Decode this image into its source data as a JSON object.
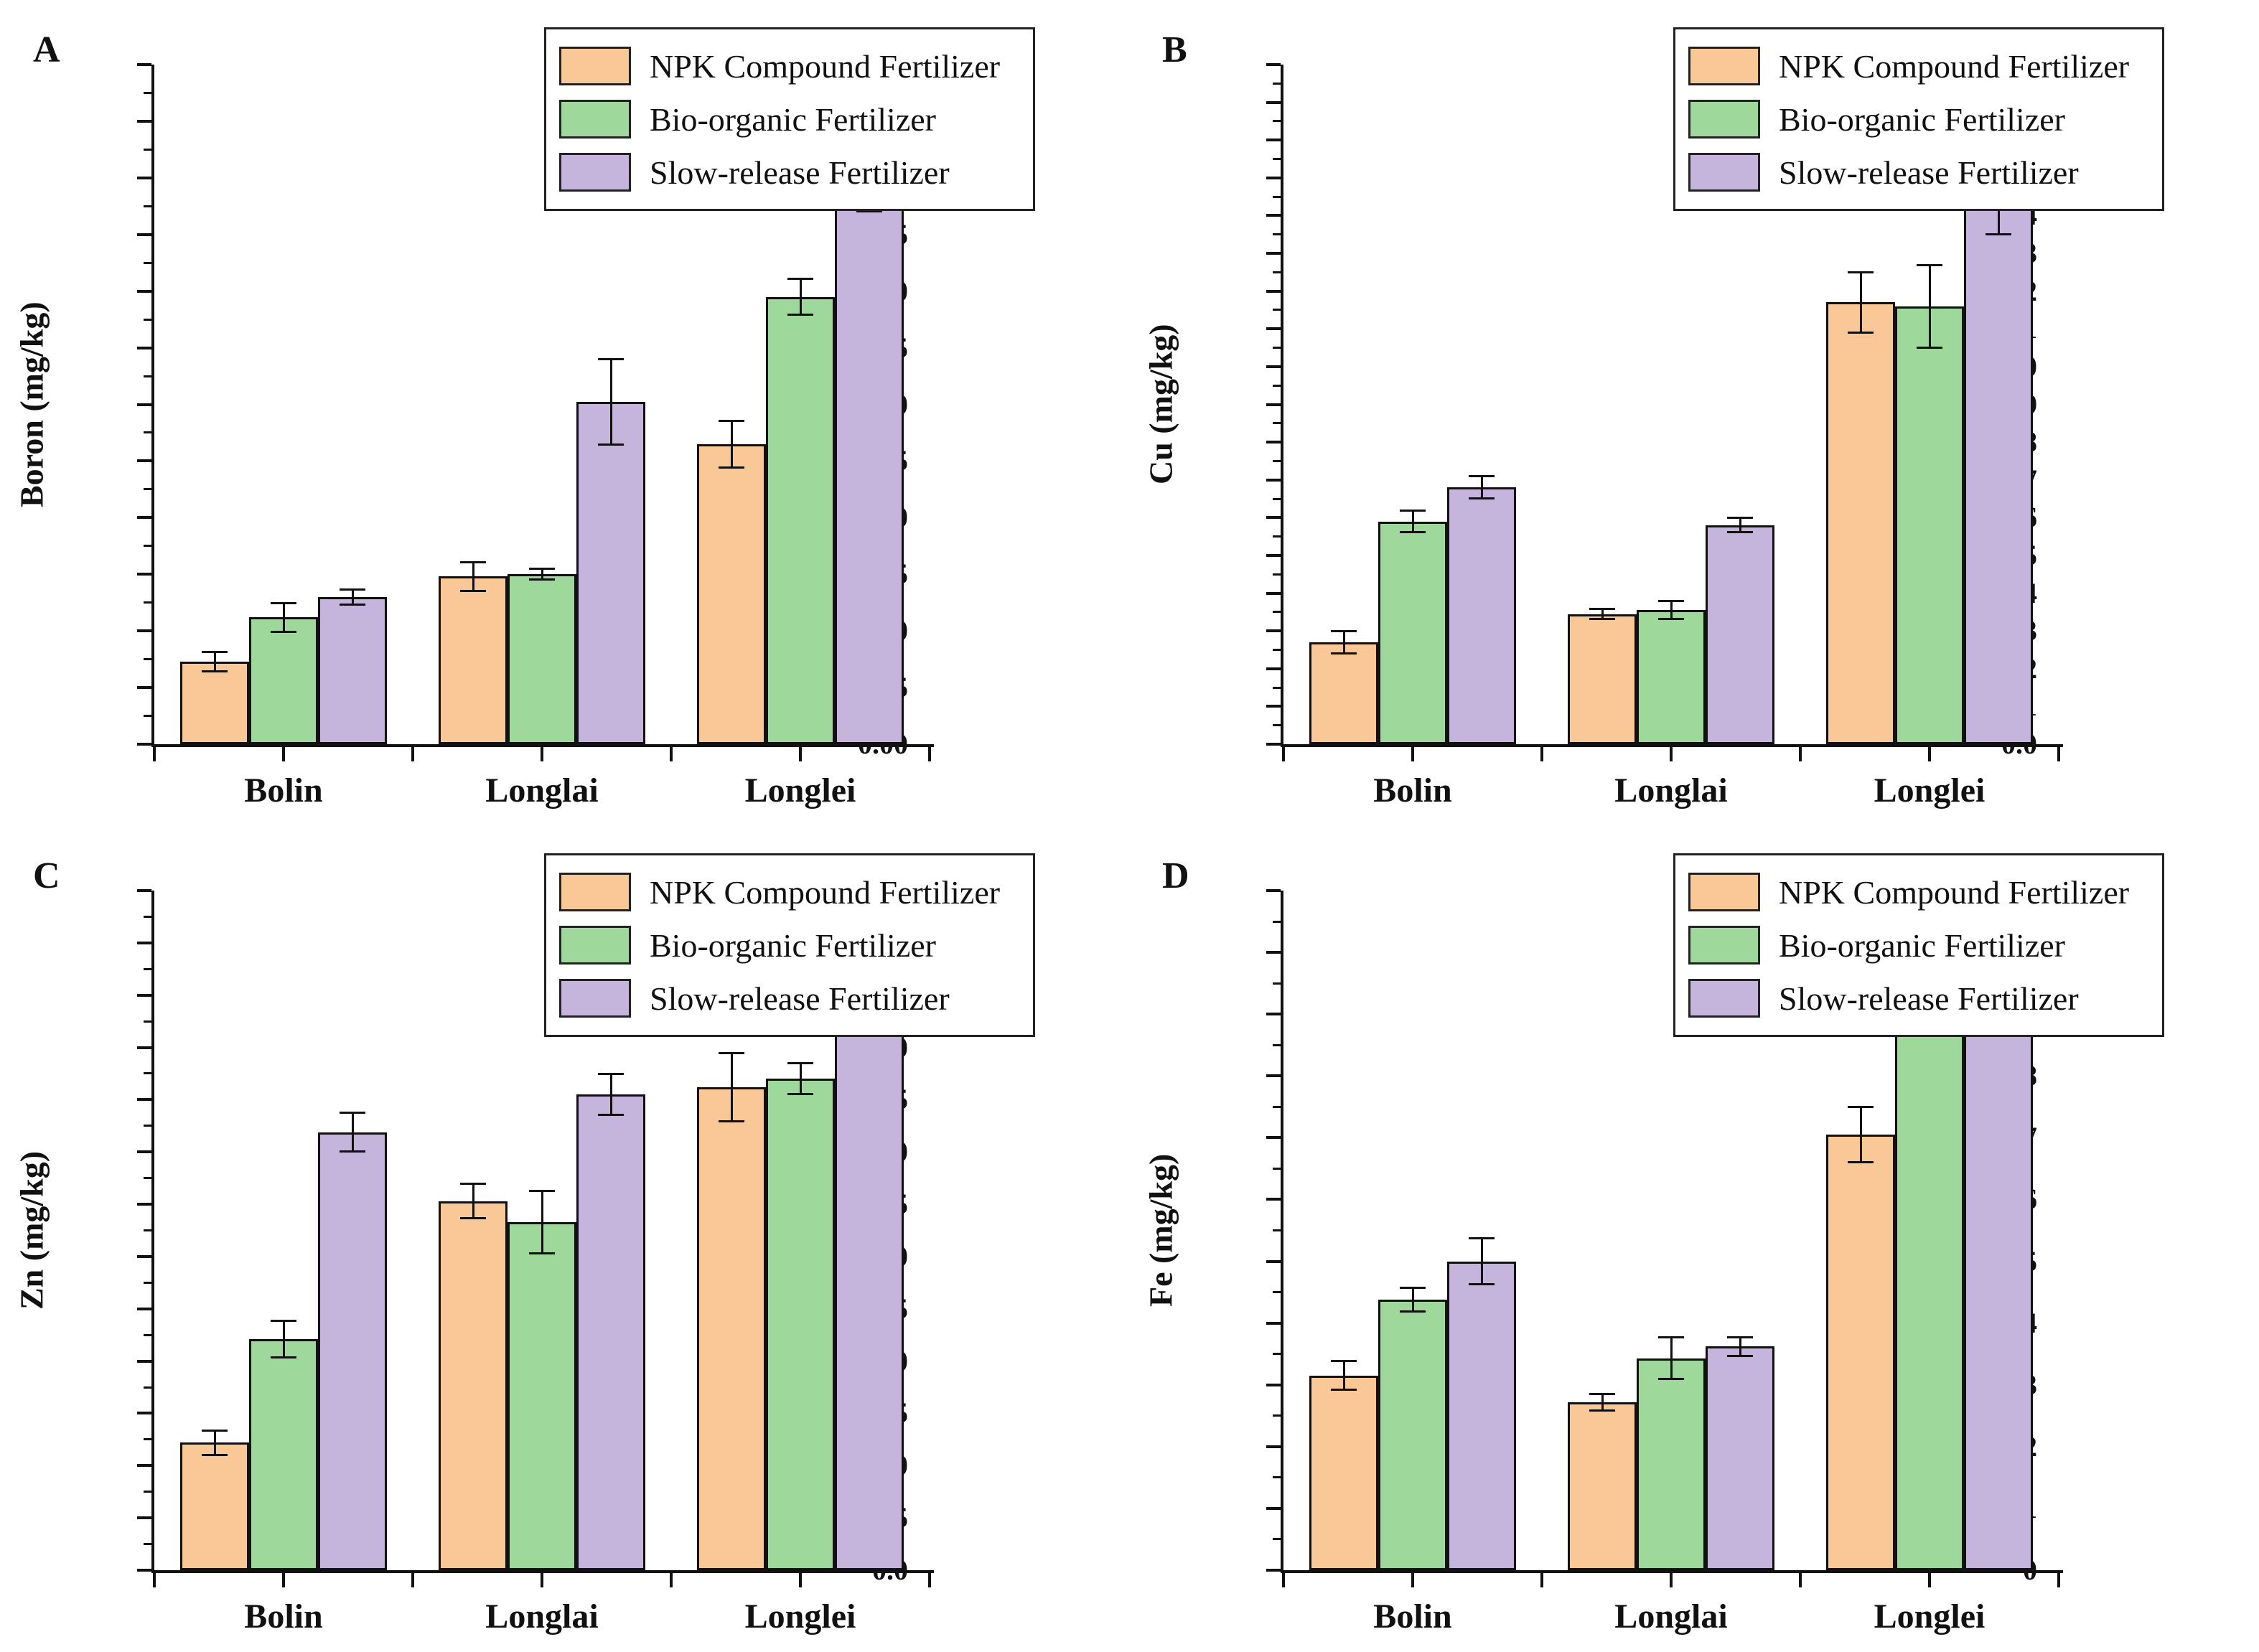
{
  "figure": {
    "background": "#ffffff",
    "text_color": "#111111",
    "legend": {
      "items": [
        {
          "label": "NPK Compound Fertilizer",
          "color": "#FAC896"
        },
        {
          "label": "Bio-organic Fertilizer",
          "color": "#9ED99B"
        },
        {
          "label": "Slow-release Fertilizer",
          "color": "#C5B4DB"
        }
      ],
      "position": "top-right"
    }
  },
  "chart_data": [
    {
      "type": "bar",
      "panel_label": "A",
      "ylabel": "Boron (mg/kg)",
      "xlabel": "",
      "ymin": 0,
      "ymax": 0.6,
      "major_step": 0.05,
      "minor_per_major": 2,
      "decimals": 2,
      "grid": false,
      "legend_position": "top-right",
      "categories": [
        "Bolin",
        "Longlai",
        "Longlei"
      ],
      "series": [
        {
          "name": "NPK Compound Fertilizer",
          "color": "#FAC896",
          "values": [
            0.073,
            0.148,
            0.265
          ],
          "errors": [
            0.009,
            0.013,
            0.021
          ]
        },
        {
          "name": "Bio-organic Fertilizer",
          "color": "#9ED99B",
          "values": [
            0.112,
            0.15,
            0.395
          ],
          "errors": [
            0.013,
            0.005,
            0.016
          ]
        },
        {
          "name": "Slow-release Fertilizer",
          "color": "#C5B4DB",
          "values": [
            0.13,
            0.302,
            0.495
          ],
          "errors": [
            0.007,
            0.038,
            0.025
          ]
        }
      ]
    },
    {
      "type": "bar",
      "panel_label": "B",
      "ylabel": "Cu (mg/kg)",
      "xlabel": "",
      "ymin": 0,
      "ymax": 1.8,
      "major_step": 0.1,
      "minor_per_major": 2,
      "decimals": 1,
      "grid": false,
      "legend_position": "top-right",
      "categories": [
        "Bolin",
        "Longlai",
        "Longlei"
      ],
      "series": [
        {
          "name": "NPK Compound Fertilizer",
          "color": "#FAC896",
          "values": [
            0.27,
            0.345,
            1.17
          ],
          "errors": [
            0.03,
            0.015,
            0.08
          ]
        },
        {
          "name": "Bio-organic Fertilizer",
          "color": "#9ED99B",
          "values": [
            0.59,
            0.355,
            1.16
          ],
          "errors": [
            0.03,
            0.025,
            0.11
          ]
        },
        {
          "name": "Slow-release Fertilizer",
          "color": "#C5B4DB",
          "values": [
            0.68,
            0.58,
            1.45
          ],
          "errors": [
            0.03,
            0.02,
            0.1
          ]
        }
      ]
    },
    {
      "type": "bar",
      "panel_label": "C",
      "ylabel": "Zn (mg/kg)",
      "xlabel": "",
      "ymin": 0,
      "ymax": 6.5,
      "major_step": 0.5,
      "minor_per_major": 2,
      "decimals": 1,
      "grid": false,
      "legend_position": "top-right",
      "categories": [
        "Bolin",
        "Longlai",
        "Longlei"
      ],
      "series": [
        {
          "name": "NPK Compound Fertilizer",
          "color": "#FAC896",
          "values": [
            1.22,
            3.53,
            4.62
          ],
          "errors": [
            0.12,
            0.17,
            0.33
          ]
        },
        {
          "name": "Bio-organic Fertilizer",
          "color": "#9ED99B",
          "values": [
            2.21,
            3.33,
            4.7
          ],
          "errors": [
            0.18,
            0.3,
            0.15
          ]
        },
        {
          "name": "Slow-release Fertilizer",
          "color": "#C5B4DB",
          "values": [
            4.19,
            4.55,
            5.8
          ],
          "errors": [
            0.19,
            0.2,
            0.17
          ]
        }
      ]
    },
    {
      "type": "bar",
      "panel_label": "D",
      "ylabel": "Fe (mg/kg)",
      "xlabel": "",
      "ymin": 0,
      "ymax": 11,
      "major_step": 1,
      "minor_per_major": 2,
      "decimals": 0,
      "grid": false,
      "legend_position": "top-right",
      "categories": [
        "Bolin",
        "Longlai",
        "Longlei"
      ],
      "series": [
        {
          "name": "NPK Compound Fertilizer",
          "color": "#FAC896",
          "values": [
            3.15,
            2.72,
            7.05
          ],
          "errors": [
            0.24,
            0.14,
            0.45
          ]
        },
        {
          "name": "Bio-organic Fertilizer",
          "color": "#9ED99B",
          "values": [
            4.38,
            3.43,
            9.32
          ],
          "errors": [
            0.2,
            0.34,
            0.35
          ]
        },
        {
          "name": "Slow-release Fertilizer",
          "color": "#C5B4DB",
          "values": [
            5.0,
            3.62,
            9.65
          ],
          "errors": [
            0.38,
            0.16,
            0.12
          ]
        }
      ]
    }
  ]
}
